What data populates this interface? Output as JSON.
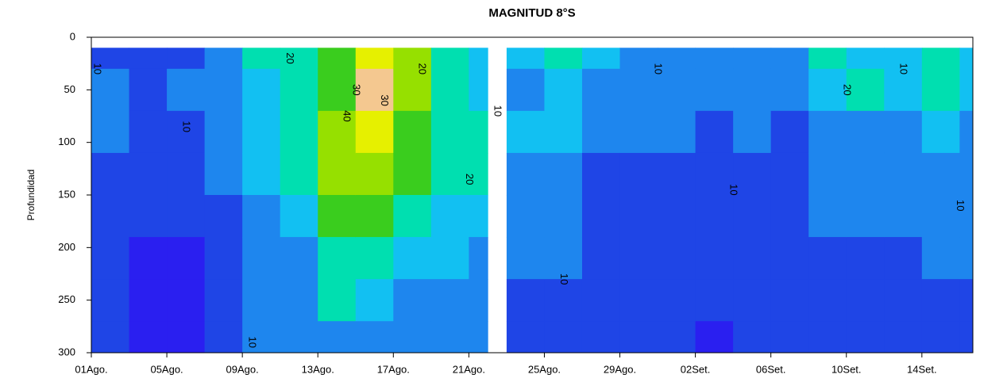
{
  "chart_data": {
    "type": "heatmap",
    "title": "MAGNITUD 8°S",
    "ylabel": "Profundidad",
    "x": [
      0,
      2,
      4,
      6,
      8,
      10,
      12,
      14,
      16,
      18,
      20,
      21,
      22,
      24,
      26,
      28,
      30,
      32,
      34,
      36,
      38,
      40,
      42,
      44,
      46
    ],
    "depths": [
      10,
      50,
      90,
      130,
      170,
      210,
      250,
      290
    ],
    "z": [
      [
        8,
        12,
        10,
        8,
        6,
        6,
        5,
        5
      ],
      [
        6,
        8,
        6,
        5,
        5,
        4,
        4,
        4
      ],
      [
        8,
        10,
        8,
        6,
        5,
        4,
        4,
        4
      ],
      [
        12,
        14,
        12,
        10,
        8,
        8,
        6,
        8
      ],
      [
        20,
        18,
        16,
        16,
        12,
        12,
        10,
        10
      ],
      [
        24,
        22,
        22,
        20,
        16,
        12,
        12,
        12
      ],
      [
        26,
        26,
        30,
        30,
        28,
        22,
        20,
        14
      ],
      [
        36,
        40,
        36,
        32,
        26,
        20,
        16,
        12
      ],
      [
        30,
        32,
        28,
        26,
        22,
        18,
        14,
        12
      ],
      [
        24,
        24,
        22,
        20,
        18,
        16,
        12,
        10
      ],
      [
        18,
        18,
        20,
        20,
        16,
        14,
        12,
        14
      ],
      [
        null,
        null,
        null,
        null,
        null,
        null,
        null,
        null
      ],
      [
        16,
        14,
        18,
        14,
        12,
        10,
        8,
        8
      ],
      [
        20,
        18,
        16,
        14,
        12,
        10,
        8,
        8
      ],
      [
        16,
        12,
        10,
        8,
        8,
        6,
        6,
        6
      ],
      [
        12,
        10,
        10,
        8,
        8,
        8,
        6,
        6
      ],
      [
        14,
        14,
        10,
        8,
        8,
        6,
        6,
        6
      ],
      [
        12,
        12,
        8,
        6,
        6,
        6,
        6,
        4
      ],
      [
        14,
        14,
        10,
        8,
        8,
        6,
        6,
        6
      ],
      [
        12,
        12,
        8,
        8,
        8,
        6,
        6,
        6
      ],
      [
        20,
        18,
        12,
        10,
        10,
        8,
        6,
        6
      ],
      [
        18,
        20,
        14,
        12,
        10,
        8,
        8,
        6
      ],
      [
        16,
        16,
        14,
        12,
        10,
        8,
        6,
        6
      ],
      [
        22,
        24,
        16,
        14,
        12,
        10,
        8,
        8
      ],
      [
        18,
        16,
        14,
        12,
        12,
        10,
        8,
        8
      ]
    ],
    "levels": [
      5,
      10,
      15,
      20,
      25,
      30,
      35,
      40,
      45
    ],
    "colors": [
      "#2a1ff0",
      "#1f45e6",
      "#1e86ee",
      "#12c0f2",
      "#00dfb0",
      "#3acd1e",
      "#96e000",
      "#e6f000",
      "#f4c890"
    ],
    "xlim": [
      0,
      46.7
    ],
    "ylim": [
      300,
      0
    ],
    "xticks": [
      {
        "value": 0,
        "label": "01Ago."
      },
      {
        "value": 4,
        "label": "05Ago."
      },
      {
        "value": 8,
        "label": "09Ago."
      },
      {
        "value": 12,
        "label": "13Ago."
      },
      {
        "value": 16,
        "label": "17Ago."
      },
      {
        "value": 20,
        "label": "21Ago."
      },
      {
        "value": 24,
        "label": "25Ago."
      },
      {
        "value": 28,
        "label": "29Ago."
      },
      {
        "value": 32,
        "label": "02Set."
      },
      {
        "value": 36,
        "label": "06Set."
      },
      {
        "value": 40,
        "label": "10Set."
      },
      {
        "value": 44,
        "label": "14Set."
      }
    ],
    "yticks": [
      0,
      50,
      100,
      150,
      200,
      250,
      300
    ],
    "annotations": [
      {
        "x": 0.3,
        "y": 30,
        "text": "10"
      },
      {
        "x": 5,
        "y": 85,
        "text": "10"
      },
      {
        "x": 8.5,
        "y": 310,
        "text": "10"
      },
      {
        "x": 10.5,
        "y": 20,
        "text": "20"
      },
      {
        "x": 14,
        "y": 50,
        "text": "30"
      },
      {
        "x": 13.5,
        "y": 75,
        "text": "40"
      },
      {
        "x": 15.5,
        "y": 60,
        "text": "30"
      },
      {
        "x": 17.5,
        "y": 30,
        "text": "20"
      },
      {
        "x": 20,
        "y": 135,
        "text": "20"
      },
      {
        "x": 21.5,
        "y": 70,
        "text": "10"
      },
      {
        "x": 25,
        "y": 230,
        "text": "10"
      },
      {
        "x": 30,
        "y": 30,
        "text": "10"
      },
      {
        "x": 34,
        "y": 145,
        "text": "10"
      },
      {
        "x": 40,
        "y": 50,
        "text": "20"
      },
      {
        "x": 43,
        "y": 30,
        "text": "10"
      },
      {
        "x": 46,
        "y": 160,
        "text": "10"
      }
    ]
  }
}
